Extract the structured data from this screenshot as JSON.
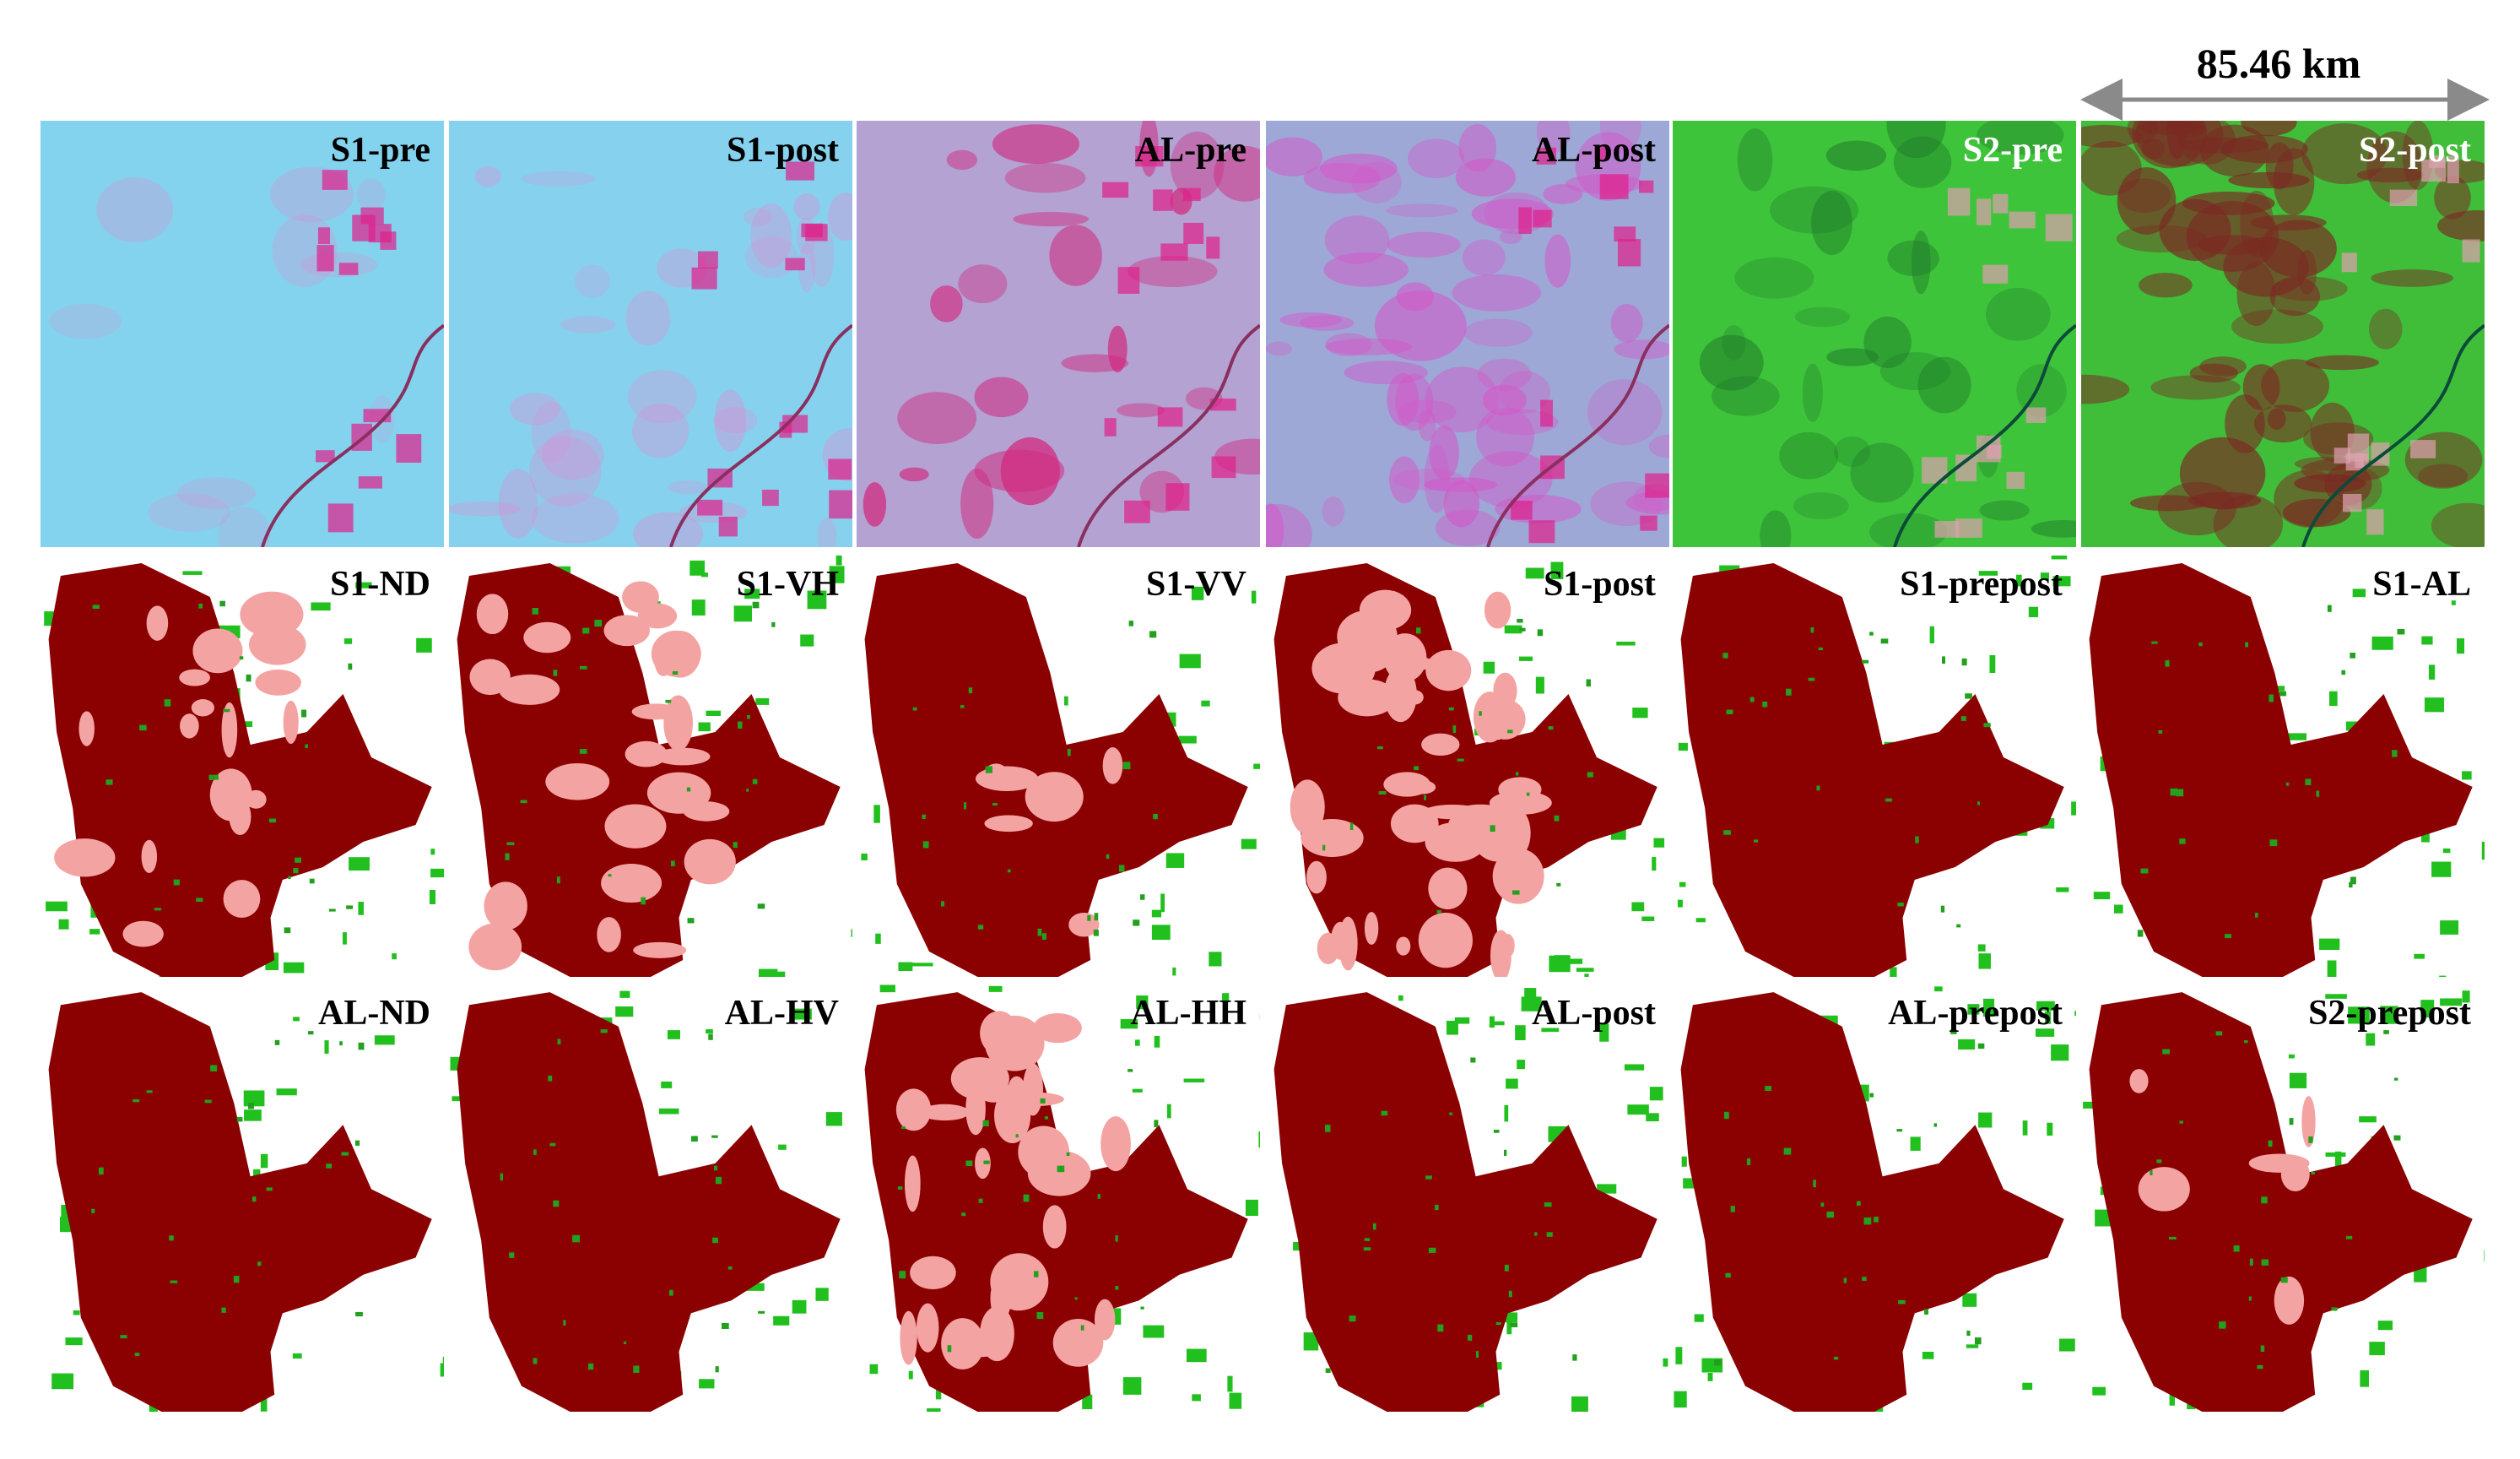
{
  "scale_bar": {
    "label": "85.46 km"
  },
  "rows": [
    {
      "panels": [
        {
          "label": "S1-pre"
        },
        {
          "label": "S1-post"
        },
        {
          "label": "AL-pre"
        },
        {
          "label": "AL-post"
        },
        {
          "label": "S2-pre"
        },
        {
          "label": "S2-post"
        }
      ]
    },
    {
      "panels": [
        {
          "label": "S1-ND"
        },
        {
          "label": "S1-VH"
        },
        {
          "label": "S1-VV"
        },
        {
          "label": "S1-post"
        },
        {
          "label": "S1-prepost"
        },
        {
          "label": "S1-AL"
        }
      ]
    },
    {
      "panels": [
        {
          "label": "AL-ND"
        },
        {
          "label": "AL-HV"
        },
        {
          "label": "AL-HH"
        },
        {
          "label": "AL-post"
        },
        {
          "label": "AL-prepost"
        },
        {
          "label": "S2-prepost"
        }
      ]
    }
  ]
}
